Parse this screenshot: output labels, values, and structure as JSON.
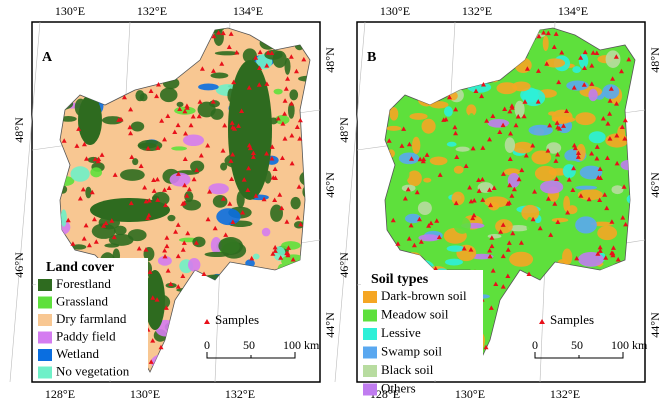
{
  "panels": [
    {
      "label": "A",
      "top_labels": [
        "130°E",
        "132°E",
        "134°E"
      ],
      "left_labels": [
        "48°N",
        "46°N"
      ],
      "right_labels": [
        "48°N",
        "46°N",
        "44°N"
      ],
      "bottom_labels": [
        "128°E",
        "130°E",
        "132°E"
      ],
      "legend": {
        "title": "Land cover",
        "items": [
          {
            "name": "Forestland",
            "color": "#2e6b1f"
          },
          {
            "name": "Grassland",
            "color": "#5ee03c"
          },
          {
            "name": "Dry farmland",
            "color": "#f8c792"
          },
          {
            "name": "Paddy field",
            "color": "#d47cf0"
          },
          {
            "name": "Wetland",
            "color": "#0a6ee0"
          },
          {
            "name": "No vegetation",
            "color": "#6ff0c8"
          }
        ]
      },
      "samples_label": "Samples",
      "scale_labels": [
        "0",
        "50",
        "100 km"
      ]
    },
    {
      "label": "B",
      "top_labels": [
        "130°E",
        "132°E",
        "134°E"
      ],
      "left_labels": [
        "48°N",
        "46°N"
      ],
      "right_labels": [
        "48°N",
        "46°N",
        "44°N"
      ],
      "bottom_labels": [
        "128°E",
        "130°E",
        "132°E"
      ],
      "legend": {
        "title": "Soil types",
        "items": [
          {
            "name": "Dark-brown soil",
            "color": "#f5a623"
          },
          {
            "name": "Meadow soil",
            "color": "#5ee03c"
          },
          {
            "name": "Lessive",
            "color": "#2ef0d8"
          },
          {
            "name": "Swamp soil",
            "color": "#5aa8f0"
          },
          {
            "name": "Black soil",
            "color": "#b8dca0"
          },
          {
            "name": "Others",
            "color": "#c07cf0"
          }
        ]
      },
      "samples_label": "Samples",
      "scale_labels": [
        "0",
        "50",
        "100 km"
      ]
    }
  ]
}
